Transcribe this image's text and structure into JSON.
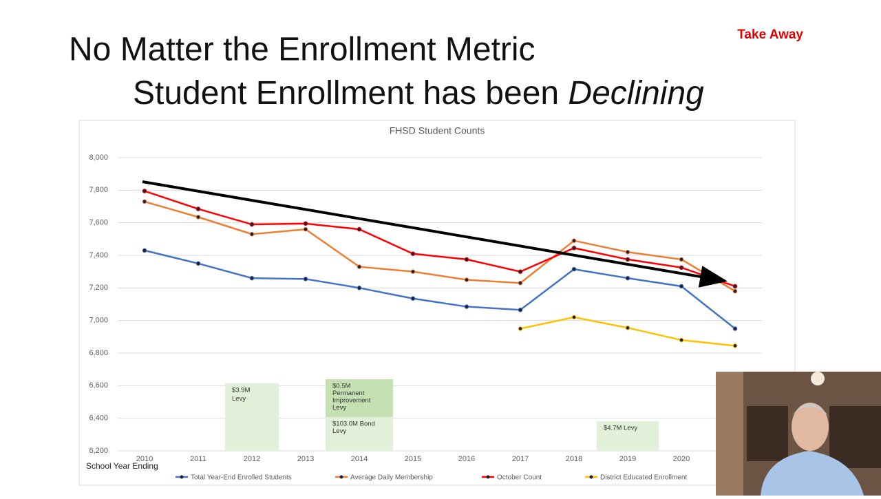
{
  "slide": {
    "take_away": "Take Away",
    "title_line1": "No Matter the Enrollment Metric",
    "title_line2": "Student Enrollment has been ",
    "title_emphasis": "Declining"
  },
  "chart_data": {
    "type": "line",
    "title": "FHSD Student Counts",
    "x_label": "School Year Ending",
    "categories": [
      "2010",
      "2011",
      "2012",
      "2013",
      "2014",
      "2015",
      "2016",
      "2017",
      "2018",
      "2019",
      "2020",
      null
    ],
    "series": [
      {
        "name": "Total Year-End Enrolled Students",
        "color": "#4472c4",
        "values": [
          7430,
          7350,
          7260,
          7255,
          7200,
          7135,
          7085,
          7065,
          7315,
          7260,
          7210,
          6950
        ]
      },
      {
        "name": "Average Daily Membership",
        "color": "#ed7d31",
        "values": [
          7730,
          7635,
          7530,
          7560,
          7330,
          7300,
          7250,
          7230,
          7490,
          7420,
          7375,
          7180
        ]
      },
      {
        "name": "October Count",
        "color": "#ff0000",
        "values": [
          7795,
          7685,
          7590,
          7595,
          7560,
          7410,
          7375,
          7300,
          7445,
          7375,
          7325,
          7210
        ]
      },
      {
        "name": "District Educated Enrollment",
        "color": "#ffc000",
        "values": [
          null,
          null,
          null,
          null,
          null,
          null,
          null,
          6950,
          7020,
          6955,
          6880,
          6845
        ]
      }
    ],
    "ylim": [
      6200,
      8000
    ],
    "yticks": [
      {
        "value": 6200,
        "label": "6,200"
      },
      {
        "value": 6400,
        "label": "6,400"
      },
      {
        "value": 6600,
        "label": "6,600"
      },
      {
        "value": 6800,
        "label": "6,800"
      },
      {
        "value": 7000,
        "label": "7,000"
      },
      {
        "value": 7200,
        "label": "7,200"
      },
      {
        "value": 7400,
        "label": "7,400"
      },
      {
        "value": 7600,
        "label": "7,600"
      },
      {
        "value": 7800,
        "label": "7,800"
      },
      {
        "value": 8000,
        "label": "8,000"
      }
    ],
    "grid": true,
    "annotations": [
      {
        "lines": [
          "$3.9M",
          "Levy"
        ]
      },
      {
        "lines": [
          "$0.5M",
          "Permanent",
          "Improvement",
          "Levy"
        ]
      },
      {
        "lines": [
          "$103.0M Bond",
          "Levy"
        ]
      },
      {
        "lines": [
          "$4.7M Levy"
        ]
      }
    ]
  }
}
